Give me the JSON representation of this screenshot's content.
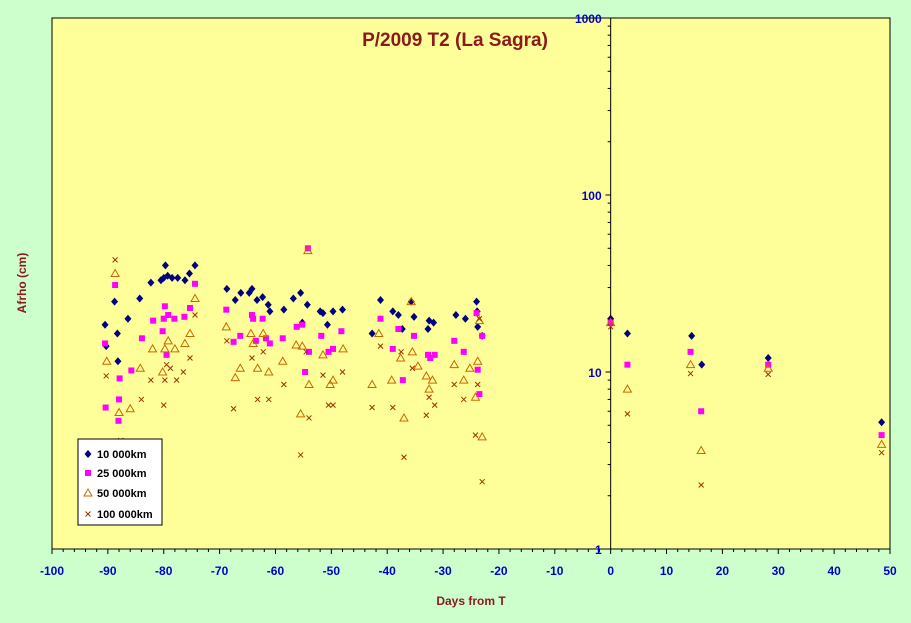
{
  "chart_data": {
    "type": "scatter",
    "title": "P/2009 T2 (La Sagra)",
    "xlabel": "Days from T",
    "ylabel": "Afrho (cm)",
    "xlim": [
      -100,
      50
    ],
    "ylim": [
      1,
      1000
    ],
    "yscale": "log",
    "x_ticks": [
      "-100",
      "-90",
      "-80",
      "-70",
      "-60",
      "-50",
      "-40",
      "-30",
      "-20",
      "-10",
      "0",
      "10",
      "20",
      "30",
      "40",
      "50"
    ],
    "y_ticks": [
      "1",
      "10",
      "100",
      "1000"
    ],
    "grid": false,
    "legend_position": "bottom-left",
    "colors": {
      "page_background": "#ccffcc",
      "plot_background": "#ffff99",
      "axis_text": "#0000cc",
      "title_text": "#8b1a1a",
      "series_10000": "#000080",
      "series_25000": "#ff00ff",
      "series_50000": "#cc6600",
      "series_100000": "#993300"
    },
    "series": [
      {
        "name": "10 000km",
        "marker": "diamond",
        "points": [
          [
            -90.5,
            18.5
          ],
          [
            -90.3,
            14
          ],
          [
            -88.8,
            25
          ],
          [
            -88.3,
            16.5
          ],
          [
            -88.2,
            11.5
          ],
          [
            -86.4,
            20
          ],
          [
            -84.3,
            26
          ],
          [
            -82.3,
            32
          ],
          [
            -80.5,
            33
          ],
          [
            -80,
            34
          ],
          [
            -79.7,
            40
          ],
          [
            -79.3,
            35
          ],
          [
            -78.5,
            34
          ],
          [
            -77.5,
            34
          ],
          [
            -76.2,
            33
          ],
          [
            -75.4,
            36
          ],
          [
            -74.4,
            40
          ],
          [
            -68.7,
            29.5
          ],
          [
            -67.2,
            25.5
          ],
          [
            -66.2,
            28
          ],
          [
            -64.7,
            28
          ],
          [
            -64.2,
            29.5
          ],
          [
            -63.3,
            25.5
          ],
          [
            -62.3,
            26.5
          ],
          [
            -61.3,
            24
          ],
          [
            -61,
            22
          ],
          [
            -58.5,
            22.5
          ],
          [
            -56.8,
            26
          ],
          [
            -55.5,
            28
          ],
          [
            -55.2,
            19
          ],
          [
            -54.3,
            24
          ],
          [
            -52,
            22
          ],
          [
            -51.5,
            21.5
          ],
          [
            -50.7,
            18.5
          ],
          [
            -49.7,
            22
          ],
          [
            -48,
            22.5
          ],
          [
            -42.7,
            16.5
          ],
          [
            -41.2,
            25.5
          ],
          [
            -39,
            22
          ],
          [
            -38,
            21
          ],
          [
            -37.3,
            17.5
          ],
          [
            -35.7,
            25
          ],
          [
            -35.2,
            20.5
          ],
          [
            -32.7,
            17.5
          ],
          [
            -32.5,
            19.5
          ],
          [
            -31.7,
            19
          ],
          [
            -27.7,
            21
          ],
          [
            -26,
            20
          ],
          [
            -24,
            25
          ],
          [
            -23.9,
            22
          ],
          [
            -23.8,
            18
          ],
          [
            -23,
            16
          ],
          [
            0,
            20
          ],
          [
            3,
            16.5
          ],
          [
            14.5,
            16
          ],
          [
            16.3,
            11
          ],
          [
            28.2,
            12
          ],
          [
            48.5,
            5.2
          ]
        ]
      },
      {
        "name": "25 000km",
        "marker": "square",
        "points": [
          [
            -90.5,
            14.5
          ],
          [
            -90.4,
            6.3
          ],
          [
            -88.7,
            31
          ],
          [
            -88.1,
            5.3
          ],
          [
            -88,
            7
          ],
          [
            -87.9,
            9.2
          ],
          [
            -85.8,
            10.2
          ],
          [
            -83.9,
            15.5
          ],
          [
            -81.9,
            19.5
          ],
          [
            -80.2,
            17
          ],
          [
            -80,
            20
          ],
          [
            -79.8,
            23.5
          ],
          [
            -79.5,
            12.5
          ],
          [
            -79.2,
            21
          ],
          [
            -78.1,
            20
          ],
          [
            -76.3,
            20.5
          ],
          [
            -75.3,
            23
          ],
          [
            -74.4,
            31.5
          ],
          [
            -68.8,
            22.5
          ],
          [
            -67.5,
            14.8
          ],
          [
            -66.3,
            16
          ],
          [
            -64.2,
            21
          ],
          [
            -64,
            20
          ],
          [
            -63.5,
            15
          ],
          [
            -62.3,
            20
          ],
          [
            -61.7,
            15.5
          ],
          [
            -61,
            14.5
          ],
          [
            -58.7,
            15.5
          ],
          [
            -56.2,
            18
          ],
          [
            -55.2,
            18.5
          ],
          [
            -54.7,
            10
          ],
          [
            -54.2,
            50
          ],
          [
            -54,
            13
          ],
          [
            -51.8,
            16
          ],
          [
            -50.5,
            13
          ],
          [
            -49.7,
            13.5
          ],
          [
            -48.2,
            17
          ],
          [
            -41.2,
            20
          ],
          [
            -39,
            13.5
          ],
          [
            -38,
            17.5
          ],
          [
            -37.2,
            9
          ],
          [
            -35.2,
            16
          ],
          [
            -32.7,
            12.5
          ],
          [
            -32.3,
            12
          ],
          [
            -31.5,
            12.5
          ],
          [
            -28,
            15
          ],
          [
            -26.3,
            13
          ],
          [
            -24,
            21.5
          ],
          [
            -23.8,
            10.3
          ],
          [
            -23.5,
            7.5
          ],
          [
            -23,
            16
          ],
          [
            0,
            19
          ],
          [
            3,
            11
          ],
          [
            14.3,
            13
          ],
          [
            16.2,
            6
          ],
          [
            28.2,
            11
          ],
          [
            48.5,
            4.4
          ]
        ]
      },
      {
        "name": "50 000km",
        "marker": "triangle",
        "points": [
          [
            -90.2,
            11.5
          ],
          [
            -88.7,
            36
          ],
          [
            -88,
            5.9
          ],
          [
            -86,
            6.2
          ],
          [
            -84.2,
            10.5
          ],
          [
            -82,
            13.5
          ],
          [
            -80.2,
            10
          ],
          [
            -79.8,
            13.5
          ],
          [
            -79.2,
            15
          ],
          [
            -78,
            13.5
          ],
          [
            -76.2,
            14.5
          ],
          [
            -75.3,
            16.5
          ],
          [
            -74.4,
            26
          ],
          [
            -68.8,
            18
          ],
          [
            -67.2,
            9.3
          ],
          [
            -66.3,
            10.5
          ],
          [
            -64.4,
            16.5
          ],
          [
            -64,
            14.5
          ],
          [
            -63.2,
            10.5
          ],
          [
            -62.2,
            16.5
          ],
          [
            -61.2,
            10
          ],
          [
            -58.7,
            11.5
          ],
          [
            -56.3,
            14.2
          ],
          [
            -55.5,
            5.8
          ],
          [
            -55.2,
            14
          ],
          [
            -54.2,
            48.5
          ],
          [
            -54,
            8.5
          ],
          [
            -51.5,
            12.5
          ],
          [
            -50.2,
            8.5
          ],
          [
            -49.7,
            9
          ],
          [
            -47.9,
            13.5
          ],
          [
            -42.7,
            8.5
          ],
          [
            -41.5,
            16.5
          ],
          [
            -39.2,
            9
          ],
          [
            -37.6,
            12
          ],
          [
            -37,
            5.5
          ],
          [
            -35.7,
            25
          ],
          [
            -35.5,
            13
          ],
          [
            -34.5,
            10.8
          ],
          [
            -33,
            9.5
          ],
          [
            -32.5,
            8
          ],
          [
            -31.9,
            9
          ],
          [
            -28,
            11
          ],
          [
            -26.3,
            9
          ],
          [
            -25.2,
            10.5
          ],
          [
            -24.2,
            7.2
          ],
          [
            -23.8,
            11.5
          ],
          [
            -23.5,
            19.5
          ],
          [
            -23,
            4.3
          ],
          [
            0,
            19
          ],
          [
            3,
            8
          ],
          [
            14.3,
            11
          ],
          [
            16.2,
            3.6
          ],
          [
            28.2,
            10.5
          ],
          [
            48.5,
            3.9
          ]
        ]
      },
      {
        "name": "100 000km",
        "marker": "x",
        "points": [
          [
            -90.3,
            9.5
          ],
          [
            -88.7,
            43
          ],
          [
            -87.7,
            4.1
          ],
          [
            -84,
            7
          ],
          [
            -82.3,
            9
          ],
          [
            -80,
            6.5
          ],
          [
            -79.8,
            9
          ],
          [
            -79.5,
            11
          ],
          [
            -78.8,
            10.5
          ],
          [
            -77.7,
            9
          ],
          [
            -76.5,
            10
          ],
          [
            -75.3,
            12
          ],
          [
            -74.4,
            21
          ],
          [
            -68.7,
            15
          ],
          [
            -67.5,
            6.2
          ],
          [
            -64.2,
            12
          ],
          [
            -63.2,
            7
          ],
          [
            -62.2,
            13
          ],
          [
            -61.2,
            7
          ],
          [
            -58.5,
            8.5
          ],
          [
            -55.5,
            3.4
          ],
          [
            -54.5,
            13
          ],
          [
            -54,
            5.5
          ],
          [
            -51.5,
            9.6
          ],
          [
            -50.5,
            6.5
          ],
          [
            -49.7,
            6.5
          ],
          [
            -48,
            10
          ],
          [
            -42.7,
            6.3
          ],
          [
            -41.2,
            14
          ],
          [
            -39,
            6.3
          ],
          [
            -37.5,
            13
          ],
          [
            -37,
            3.3
          ],
          [
            -35.5,
            10.5
          ],
          [
            -33,
            5.7
          ],
          [
            -32.5,
            7.2
          ],
          [
            -31.5,
            6.5
          ],
          [
            -28,
            8.5
          ],
          [
            -26.3,
            7
          ],
          [
            -24.2,
            4.4
          ],
          [
            -23.8,
            8.5
          ],
          [
            -23.5,
            20
          ],
          [
            -23,
            2.4
          ],
          [
            0,
            18
          ],
          [
            3,
            5.8
          ],
          [
            14.3,
            9.8
          ],
          [
            16.2,
            2.3
          ],
          [
            28.2,
            9.7
          ],
          [
            48.5,
            3.5
          ]
        ]
      }
    ]
  }
}
